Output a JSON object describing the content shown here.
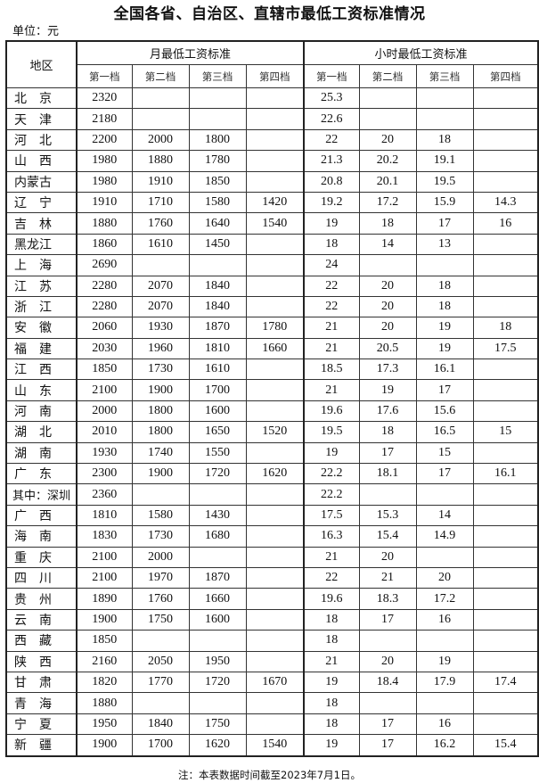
{
  "title": "全国各省、自治区、直辖市最低工资标准情况",
  "unit": "单位：元",
  "header": {
    "region": "地区",
    "monthly": "月最低工资标准",
    "hourly": "小时最低工资标准",
    "tiers": [
      "第一档",
      "第二档",
      "第三档",
      "第四档"
    ]
  },
  "rows": [
    {
      "region": "北　京",
      "monthly": [
        "2320",
        "",
        "",
        ""
      ],
      "hourly": [
        "25.3",
        "",
        "",
        ""
      ]
    },
    {
      "region": "天　津",
      "monthly": [
        "2180",
        "",
        "",
        ""
      ],
      "hourly": [
        "22.6",
        "",
        "",
        ""
      ]
    },
    {
      "region": "河　北",
      "monthly": [
        "2200",
        "2000",
        "1800",
        ""
      ],
      "hourly": [
        "22",
        "20",
        "18",
        ""
      ]
    },
    {
      "region": "山　西",
      "monthly": [
        "1980",
        "1880",
        "1780",
        ""
      ],
      "hourly": [
        "21.3",
        "20.2",
        "19.1",
        ""
      ]
    },
    {
      "region": "内蒙古",
      "monthly": [
        "1980",
        "1910",
        "1850",
        ""
      ],
      "hourly": [
        "20.8",
        "20.1",
        "19.5",
        ""
      ]
    },
    {
      "region": "辽　宁",
      "monthly": [
        "1910",
        "1710",
        "1580",
        "1420"
      ],
      "hourly": [
        "19.2",
        "17.2",
        "15.9",
        "14.3"
      ]
    },
    {
      "region": "吉　林",
      "monthly": [
        "1880",
        "1760",
        "1640",
        "1540"
      ],
      "hourly": [
        "19",
        "18",
        "17",
        "16"
      ]
    },
    {
      "region": "黑龙江",
      "monthly": [
        "1860",
        "1610",
        "1450",
        ""
      ],
      "hourly": [
        "18",
        "14",
        "13",
        ""
      ]
    },
    {
      "region": "上　海",
      "monthly": [
        "2690",
        "",
        "",
        ""
      ],
      "hourly": [
        "24",
        "",
        "",
        ""
      ]
    },
    {
      "region": "江　苏",
      "monthly": [
        "2280",
        "2070",
        "1840",
        ""
      ],
      "hourly": [
        "22",
        "20",
        "18",
        ""
      ]
    },
    {
      "region": "浙　江",
      "monthly": [
        "2280",
        "2070",
        "1840",
        ""
      ],
      "hourly": [
        "22",
        "20",
        "18",
        ""
      ]
    },
    {
      "region": "安　徽",
      "monthly": [
        "2060",
        "1930",
        "1870",
        "1780"
      ],
      "hourly": [
        "21",
        "20",
        "19",
        "18"
      ]
    },
    {
      "region": "福　建",
      "monthly": [
        "2030",
        "1960",
        "1810",
        "1660"
      ],
      "hourly": [
        "21",
        "20.5",
        "19",
        "17.5"
      ]
    },
    {
      "region": "江　西",
      "monthly": [
        "1850",
        "1730",
        "1610",
        ""
      ],
      "hourly": [
        "18.5",
        "17.3",
        "16.1",
        ""
      ]
    },
    {
      "region": "山　东",
      "monthly": [
        "2100",
        "1900",
        "1700",
        ""
      ],
      "hourly": [
        "21",
        "19",
        "17",
        ""
      ]
    },
    {
      "region": "河　南",
      "monthly": [
        "2000",
        "1800",
        "1600",
        ""
      ],
      "hourly": [
        "19.6",
        "17.6",
        "15.6",
        ""
      ]
    },
    {
      "region": "湖　北",
      "monthly": [
        "2010",
        "1800",
        "1650",
        "1520"
      ],
      "hourly": [
        "19.5",
        "18",
        "16.5",
        "15"
      ]
    },
    {
      "region": "湖　南",
      "monthly": [
        "1930",
        "1740",
        "1550",
        ""
      ],
      "hourly": [
        "19",
        "17",
        "15",
        ""
      ]
    },
    {
      "region": "广　东",
      "monthly": [
        "2300",
        "1900",
        "1720",
        "1620"
      ],
      "hourly": [
        "22.2",
        "18.1",
        "17",
        "16.1"
      ]
    },
    {
      "region": "其中：深圳",
      "monthly": [
        "2360",
        "",
        "",
        ""
      ],
      "hourly": [
        "22.2",
        "",
        "",
        ""
      ]
    },
    {
      "region": "广　西",
      "monthly": [
        "1810",
        "1580",
        "1430",
        ""
      ],
      "hourly": [
        "17.5",
        "15.3",
        "14",
        ""
      ]
    },
    {
      "region": "海　南",
      "monthly": [
        "1830",
        "1730",
        "1680",
        ""
      ],
      "hourly": [
        "16.3",
        "15.4",
        "14.9",
        ""
      ]
    },
    {
      "region": "重　庆",
      "monthly": [
        "2100",
        "2000",
        "",
        ""
      ],
      "hourly": [
        "21",
        "20",
        "",
        ""
      ]
    },
    {
      "region": "四　川",
      "monthly": [
        "2100",
        "1970",
        "1870",
        ""
      ],
      "hourly": [
        "22",
        "21",
        "20",
        ""
      ]
    },
    {
      "region": "贵　州",
      "monthly": [
        "1890",
        "1760",
        "1660",
        ""
      ],
      "hourly": [
        "19.6",
        "18.3",
        "17.2",
        ""
      ]
    },
    {
      "region": "云　南",
      "monthly": [
        "1900",
        "1750",
        "1600",
        ""
      ],
      "hourly": [
        "18",
        "17",
        "16",
        ""
      ]
    },
    {
      "region": "西　藏",
      "monthly": [
        "1850",
        "",
        "",
        ""
      ],
      "hourly": [
        "18",
        "",
        "",
        ""
      ]
    },
    {
      "region": "陕　西",
      "monthly": [
        "2160",
        "2050",
        "1950",
        ""
      ],
      "hourly": [
        "21",
        "20",
        "19",
        ""
      ]
    },
    {
      "region": "甘　肃",
      "monthly": [
        "1820",
        "1770",
        "1720",
        "1670"
      ],
      "hourly": [
        "19",
        "18.4",
        "17.9",
        "17.4"
      ]
    },
    {
      "region": "青　海",
      "monthly": [
        "1880",
        "",
        "",
        ""
      ],
      "hourly": [
        "18",
        "",
        "",
        ""
      ]
    },
    {
      "region": "宁　夏",
      "monthly": [
        "1950",
        "1840",
        "1750",
        ""
      ],
      "hourly": [
        "18",
        "17",
        "16",
        ""
      ]
    },
    {
      "region": "新　疆",
      "monthly": [
        "1900",
        "1700",
        "1620",
        "1540"
      ],
      "hourly": [
        "19",
        "17",
        "16.2",
        "15.4"
      ]
    }
  ],
  "note": "注：本表数据时间截至2023年7月1日。"
}
